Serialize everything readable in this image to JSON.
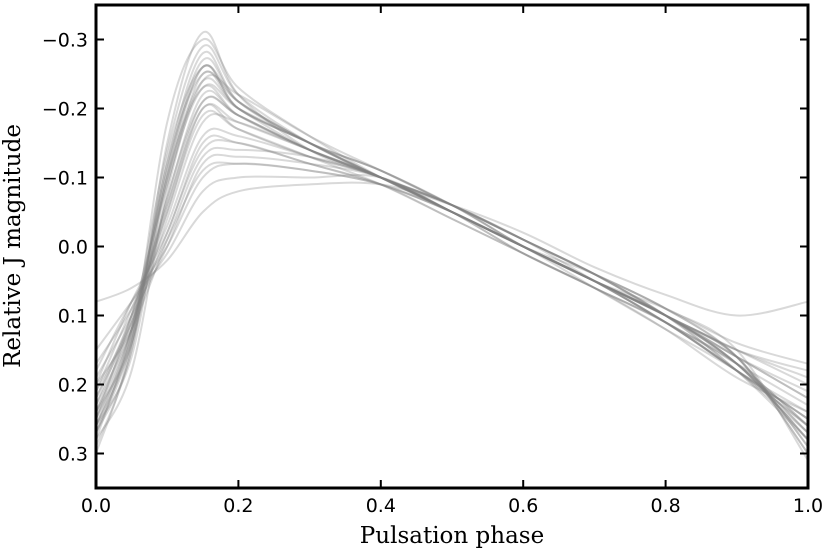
{
  "chart_data": {
    "type": "line",
    "title": "",
    "xlabel": "Pulsation phase",
    "ylabel": "Relative J magnitude",
    "xlim": [
      0.0,
      1.0
    ],
    "ylim": [
      0.35,
      -0.35
    ],
    "y_inverted": true,
    "grid": false,
    "legend": "none",
    "line_color": "#808080",
    "line_opacity": 0.3,
    "xticks": [
      {
        "value": 0.0,
        "label": "0.0"
      },
      {
        "value": 0.2,
        "label": "0.2"
      },
      {
        "value": 0.4,
        "label": "0.4"
      },
      {
        "value": 0.6,
        "label": "0.6"
      },
      {
        "value": 0.8,
        "label": "0.8"
      },
      {
        "value": 1.0,
        "label": "1.0"
      }
    ],
    "yticks": [
      {
        "value": -0.3,
        "label": "−0.3"
      },
      {
        "value": -0.2,
        "label": "−0.2"
      },
      {
        "value": -0.1,
        "label": "−0.1"
      },
      {
        "value": 0.0,
        "label": "0.0"
      },
      {
        "value": 0.1,
        "label": "0.1"
      },
      {
        "value": 0.2,
        "label": "0.2"
      },
      {
        "value": 0.3,
        "label": "0.3"
      }
    ],
    "x": [
      0.0,
      0.05,
      0.1,
      0.15,
      0.2,
      0.3,
      0.4,
      0.5,
      0.6,
      0.7,
      0.8,
      0.9,
      1.0
    ],
    "series": [
      {
        "name": "curve-01",
        "values": [
          0.25,
          0.12,
          -0.1,
          -0.26,
          -0.2,
          -0.15,
          -0.1,
          -0.05,
          0.0,
          0.05,
          0.1,
          0.17,
          0.28
        ]
      },
      {
        "name": "curve-02",
        "values": [
          0.27,
          0.15,
          -0.15,
          -0.31,
          -0.22,
          -0.14,
          -0.1,
          -0.06,
          -0.01,
          0.04,
          0.1,
          0.16,
          0.3
        ]
      },
      {
        "name": "curve-03",
        "values": [
          0.22,
          0.1,
          -0.05,
          -0.2,
          -0.17,
          -0.13,
          -0.1,
          -0.05,
          0.01,
          0.06,
          0.11,
          0.18,
          0.25
        ]
      },
      {
        "name": "curve-04",
        "values": [
          0.2,
          0.08,
          -0.02,
          -0.15,
          -0.15,
          -0.12,
          -0.09,
          -0.04,
          0.01,
          0.06,
          0.11,
          0.17,
          0.23
        ]
      },
      {
        "name": "curve-05",
        "values": [
          0.28,
          0.18,
          -0.08,
          -0.24,
          -0.22,
          -0.16,
          -0.11,
          -0.06,
          -0.01,
          0.04,
          0.09,
          0.16,
          0.29
        ]
      },
      {
        "name": "curve-06",
        "values": [
          0.18,
          0.08,
          0.0,
          -0.1,
          -0.12,
          -0.11,
          -0.09,
          -0.05,
          0.0,
          0.05,
          0.1,
          0.15,
          0.2
        ]
      },
      {
        "name": "curve-07",
        "values": [
          0.26,
          0.13,
          -0.12,
          -0.28,
          -0.21,
          -0.15,
          -0.11,
          -0.06,
          0.0,
          0.05,
          0.1,
          0.18,
          0.27
        ]
      },
      {
        "name": "curve-08",
        "values": [
          0.24,
          0.11,
          -0.06,
          -0.21,
          -0.19,
          -0.14,
          -0.1,
          -0.05,
          0.0,
          0.05,
          0.11,
          0.17,
          0.26
        ]
      },
      {
        "name": "curve-09",
        "values": [
          0.15,
          0.08,
          0.01,
          -0.08,
          -0.1,
          -0.1,
          -0.1,
          -0.05,
          0.0,
          0.05,
          0.09,
          0.14,
          0.17
        ]
      },
      {
        "name": "curve-10",
        "values": [
          0.08,
          0.06,
          0.02,
          -0.05,
          -0.08,
          -0.09,
          -0.09,
          -0.06,
          -0.02,
          0.03,
          0.07,
          0.1,
          0.08
        ]
      },
      {
        "name": "curve-11",
        "values": [
          0.26,
          0.16,
          -0.1,
          -0.23,
          -0.19,
          -0.14,
          -0.1,
          -0.06,
          -0.01,
          0.04,
          0.1,
          0.18,
          0.28
        ]
      },
      {
        "name": "curve-12",
        "values": [
          0.3,
          0.14,
          -0.18,
          -0.3,
          -0.23,
          -0.16,
          -0.1,
          -0.05,
          0.0,
          0.04,
          0.09,
          0.15,
          0.31
        ]
      },
      {
        "name": "curve-13",
        "values": [
          0.23,
          0.12,
          -0.04,
          -0.18,
          -0.18,
          -0.14,
          -0.1,
          -0.05,
          0.01,
          0.06,
          0.12,
          0.19,
          0.24
        ]
      },
      {
        "name": "curve-14",
        "values": [
          0.21,
          0.09,
          -0.03,
          -0.16,
          -0.16,
          -0.13,
          -0.1,
          -0.05,
          0.0,
          0.05,
          0.1,
          0.16,
          0.22
        ]
      },
      {
        "name": "curve-15",
        "values": [
          0.25,
          0.1,
          -0.09,
          -0.25,
          -0.2,
          -0.15,
          -0.1,
          -0.06,
          -0.01,
          0.05,
          0.11,
          0.18,
          0.26
        ]
      },
      {
        "name": "curve-16",
        "values": [
          0.19,
          0.1,
          0.0,
          -0.12,
          -0.13,
          -0.12,
          -0.1,
          -0.05,
          0.0,
          0.05,
          0.1,
          0.15,
          0.19
        ]
      },
      {
        "name": "curve-17",
        "values": [
          0.27,
          0.14,
          -0.11,
          -0.27,
          -0.21,
          -0.15,
          -0.1,
          -0.06,
          0.0,
          0.05,
          0.1,
          0.17,
          0.28
        ]
      },
      {
        "name": "curve-18",
        "values": [
          0.24,
          0.12,
          -0.07,
          -0.22,
          -0.19,
          -0.14,
          -0.1,
          -0.05,
          0.0,
          0.06,
          0.12,
          0.18,
          0.25
        ]
      },
      {
        "name": "curve-19",
        "values": [
          0.2,
          0.12,
          -0.01,
          -0.13,
          -0.14,
          -0.13,
          -0.1,
          -0.05,
          0.0,
          0.05,
          0.1,
          0.16,
          0.21
        ]
      },
      {
        "name": "curve-20",
        "values": [
          0.28,
          0.12,
          -0.14,
          -0.29,
          -0.22,
          -0.15,
          -0.1,
          -0.05,
          0.0,
          0.05,
          0.1,
          0.16,
          0.29
        ]
      },
      {
        "name": "curve-21",
        "values": [
          0.22,
          0.11,
          -0.05,
          -0.19,
          -0.17,
          -0.13,
          -0.09,
          -0.04,
          0.01,
          0.06,
          0.11,
          0.18,
          0.24
        ]
      },
      {
        "name": "curve-22",
        "values": [
          0.26,
          0.14,
          -0.09,
          -0.23,
          -0.2,
          -0.15,
          -0.11,
          -0.06,
          -0.01,
          0.04,
          0.1,
          0.17,
          0.27
        ]
      },
      {
        "name": "curve-23",
        "values": [
          0.17,
          0.09,
          -0.01,
          -0.11,
          -0.12,
          -0.11,
          -0.09,
          -0.05,
          0.0,
          0.05,
          0.1,
          0.15,
          0.18
        ]
      },
      {
        "name": "curve-24",
        "values": [
          0.25,
          0.13,
          -0.1,
          -0.24,
          -0.2,
          -0.14,
          -0.1,
          -0.05,
          0.0,
          0.05,
          0.11,
          0.17,
          0.26
        ]
      },
      {
        "name": "curve-25",
        "values": [
          0.29,
          0.15,
          -0.13,
          -0.26,
          -0.21,
          -0.15,
          -0.1,
          -0.06,
          -0.01,
          0.04,
          0.09,
          0.16,
          0.3
        ]
      },
      {
        "name": "curve-26",
        "values": [
          0.23,
          0.1,
          -0.06,
          -0.2,
          -0.18,
          -0.14,
          -0.1,
          -0.05,
          0.0,
          0.05,
          0.11,
          0.18,
          0.25
        ]
      },
      {
        "name": "curve-27",
        "values": [
          0.21,
          0.11,
          -0.02,
          -0.14,
          -0.15,
          -0.12,
          -0.09,
          -0.05,
          0.0,
          0.05,
          0.1,
          0.16,
          0.22
        ]
      },
      {
        "name": "curve-28",
        "values": [
          0.26,
          0.12,
          -0.11,
          -0.26,
          -0.2,
          -0.15,
          -0.1,
          -0.05,
          0.0,
          0.05,
          0.1,
          0.17,
          0.27
        ]
      },
      {
        "name": "curve-29",
        "values": [
          0.24,
          0.14,
          -0.07,
          -0.21,
          -0.19,
          -0.14,
          -0.1,
          -0.06,
          0.0,
          0.05,
          0.11,
          0.18,
          0.26
        ]
      },
      {
        "name": "curve-30",
        "values": [
          0.27,
          0.13,
          -0.12,
          -0.25,
          -0.21,
          -0.15,
          -0.11,
          -0.06,
          -0.01,
          0.04,
          0.1,
          0.17,
          0.28
        ]
      }
    ]
  }
}
